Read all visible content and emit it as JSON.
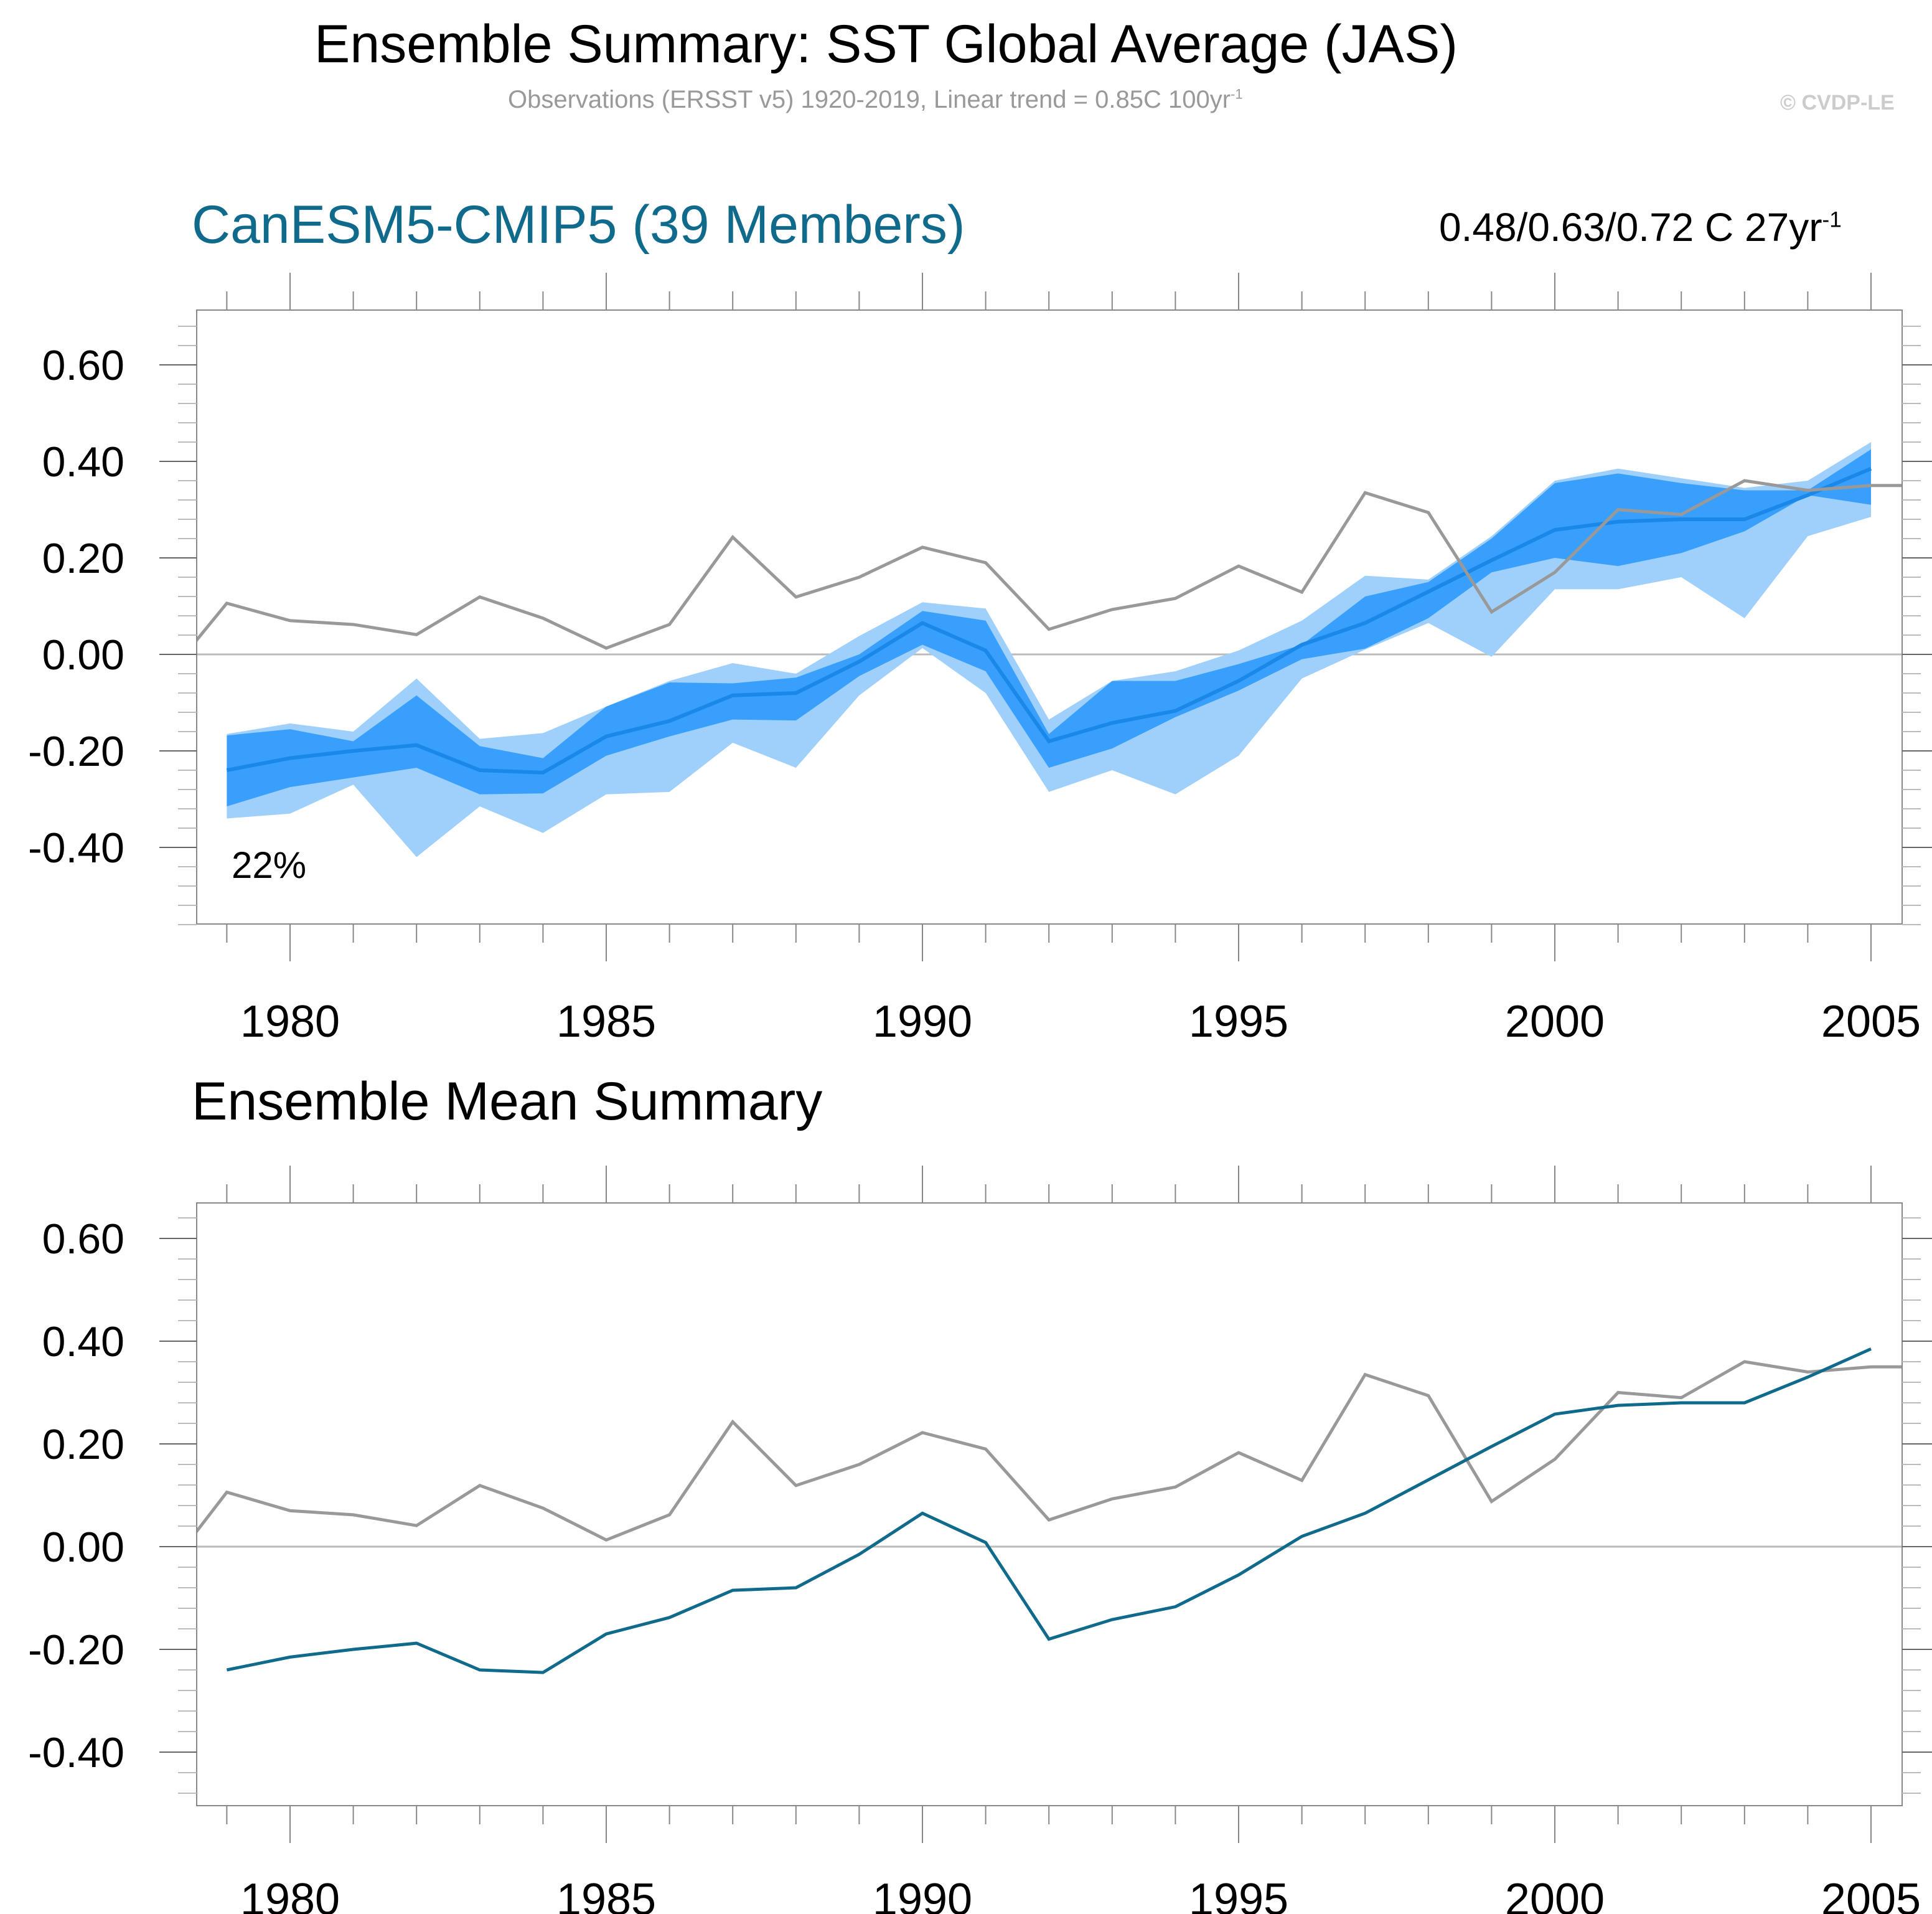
{
  "header": {
    "title": "Ensemble Summary: SST Global Average (JAS)",
    "subtitle": "Observations (ERSST v5) 1920-2019, Linear trend = 0.85C 100yr",
    "subtitle_sup": "-1",
    "credit": "© CVDP-LE"
  },
  "colors": {
    "observations": "#999999",
    "ensemble_mean_top": "#1a88e8",
    "ensemble_mean_bottom": "#0f6a8b",
    "inner_band": "#38a0fc",
    "outer_band": "#9fd0fc",
    "model_title": "#0f6a8b"
  },
  "chart_data": [
    {
      "type": "area",
      "title": "CanESM5-CMIP5 (39 Members)",
      "annotation_right": "0.48/0.63/0.72 C 27yr",
      "annotation_right_sup": "-1",
      "annotation_bottom_left": "22%",
      "xlabel": "",
      "ylabel": "",
      "xlim": [
        1978.5,
        2005.5
      ],
      "ylim": [
        -0.57,
        0.72
      ],
      "xticks": [
        "1980",
        "1985",
        "1990",
        "1995",
        "2000",
        "2005"
      ],
      "yticks": [
        "0.60",
        "0.40",
        "0.20",
        "0.00",
        "-0.20",
        "-0.40"
      ],
      "ytick_values": [
        0.6,
        0.4,
        0.2,
        0.0,
        -0.2,
        -0.4
      ],
      "grid": false,
      "x": [
        1979,
        1980,
        1981,
        1982,
        1983,
        1984,
        1985,
        1986,
        1987,
        1988,
        1989,
        1990,
        1991,
        1992,
        1993,
        1994,
        1995,
        1996,
        1997,
        1998,
        1999,
        2000,
        2001,
        2002,
        2003,
        2004,
        2005
      ],
      "series": [
        {
          "name": "Observations",
          "x": [
            1978.5,
            1979,
            1980,
            1981,
            1982,
            1983,
            1984,
            1985,
            1986,
            1987,
            1988,
            1989,
            1990,
            1991,
            1992,
            1993,
            1994,
            1995,
            1996,
            1997,
            1998,
            1999,
            2000,
            2001,
            2002,
            2003,
            2004,
            2005,
            2005.5
          ],
          "values": [
            0.026,
            0.106,
            0.07,
            0.062,
            0.041,
            0.119,
            0.075,
            0.013,
            0.062,
            0.243,
            0.119,
            0.16,
            0.222,
            0.19,
            0.052,
            0.093,
            0.116,
            0.183,
            0.129,
            0.335,
            0.294,
            0.088,
            0.17,
            0.3,
            0.29,
            0.36,
            0.34,
            0.35,
            0.35
          ]
        },
        {
          "name": "Ensemble mean",
          "values": [
            -0.24,
            -0.215,
            -0.2,
            -0.188,
            -0.24,
            -0.245,
            -0.17,
            -0.138,
            -0.085,
            -0.08,
            -0.015,
            0.065,
            0.008,
            -0.18,
            -0.142,
            -0.117,
            -0.055,
            0.02,
            0.065,
            0.13,
            0.195,
            0.258,
            0.275,
            0.28,
            0.28,
            0.33,
            0.385
          ]
        },
        {
          "name": "Outer band upper",
          "values": [
            -0.165,
            -0.143,
            -0.16,
            -0.05,
            -0.175,
            -0.163,
            -0.108,
            -0.055,
            -0.018,
            -0.04,
            0.038,
            0.108,
            0.095,
            -0.135,
            -0.055,
            -0.035,
            0.008,
            0.07,
            0.163,
            0.155,
            0.245,
            0.36,
            0.385,
            0.365,
            0.345,
            0.36,
            0.44
          ]
        },
        {
          "name": "Inner band upper",
          "values": [
            -0.168,
            -0.155,
            -0.18,
            -0.085,
            -0.19,
            -0.215,
            -0.108,
            -0.058,
            -0.06,
            -0.048,
            0.0,
            0.09,
            0.07,
            -0.165,
            -0.055,
            -0.055,
            -0.02,
            0.02,
            0.12,
            0.15,
            0.24,
            0.355,
            0.375,
            0.355,
            0.34,
            0.34,
            0.425
          ]
        },
        {
          "name": "Inner band lower",
          "values": [
            -0.315,
            -0.275,
            -0.255,
            -0.235,
            -0.29,
            -0.288,
            -0.21,
            -0.17,
            -0.135,
            -0.137,
            -0.045,
            0.02,
            -0.035,
            -0.235,
            -0.195,
            -0.13,
            -0.075,
            -0.01,
            0.012,
            0.075,
            0.17,
            0.2,
            0.183,
            0.21,
            0.255,
            0.33,
            0.31
          ]
        },
        {
          "name": "Outer band lower",
          "values": [
            -0.34,
            -0.33,
            -0.27,
            -0.42,
            -0.315,
            -0.37,
            -0.29,
            -0.285,
            -0.183,
            -0.235,
            -0.085,
            0.013,
            -0.08,
            -0.285,
            -0.24,
            -0.29,
            -0.21,
            -0.05,
            0.01,
            0.065,
            -0.005,
            0.135,
            0.135,
            0.16,
            0.075,
            0.245,
            0.285
          ]
        }
      ]
    },
    {
      "type": "line",
      "title": "Ensemble Mean Summary",
      "xlabel": "",
      "ylabel": "",
      "xlim": [
        1978.5,
        2005.5
      ],
      "ylim": [
        -0.52,
        0.67
      ],
      "xticks": [
        "1980",
        "1985",
        "1990",
        "1995",
        "2000",
        "2005"
      ],
      "yticks": [
        "0.60",
        "0.40",
        "0.20",
        "0.00",
        "-0.20",
        "-0.40"
      ],
      "ytick_values": [
        0.6,
        0.4,
        0.2,
        0.0,
        -0.2,
        -0.4
      ],
      "grid": false,
      "series": [
        {
          "name": "Observations",
          "x": [
            1978.5,
            1979,
            1980,
            1981,
            1982,
            1983,
            1984,
            1985,
            1986,
            1987,
            1988,
            1989,
            1990,
            1991,
            1992,
            1993,
            1994,
            1995,
            1996,
            1997,
            1998,
            1999,
            2000,
            2001,
            2002,
            2003,
            2004,
            2005,
            2005.5
          ],
          "values": [
            0.026,
            0.106,
            0.07,
            0.062,
            0.041,
            0.119,
            0.075,
            0.013,
            0.062,
            0.243,
            0.119,
            0.16,
            0.222,
            0.19,
            0.052,
            0.093,
            0.116,
            0.183,
            0.129,
            0.335,
            0.294,
            0.088,
            0.17,
            0.3,
            0.29,
            0.36,
            0.34,
            0.35,
            0.35
          ]
        },
        {
          "name": "CanESM5-CMIP5 ensemble mean",
          "x": [
            1979,
            1980,
            1981,
            1982,
            1983,
            1984,
            1985,
            1986,
            1987,
            1988,
            1989,
            1990,
            1991,
            1992,
            1993,
            1994,
            1995,
            1996,
            1997,
            1998,
            1999,
            2000,
            2001,
            2002,
            2003,
            2004,
            2005
          ],
          "values": [
            -0.24,
            -0.215,
            -0.2,
            -0.188,
            -0.24,
            -0.245,
            -0.17,
            -0.138,
            -0.085,
            -0.08,
            -0.015,
            0.065,
            0.008,
            -0.18,
            -0.142,
            -0.117,
            -0.055,
            0.02,
            0.065,
            0.13,
            0.195,
            0.258,
            0.275,
            0.28,
            0.28,
            0.33,
            0.385
          ]
        }
      ]
    }
  ]
}
